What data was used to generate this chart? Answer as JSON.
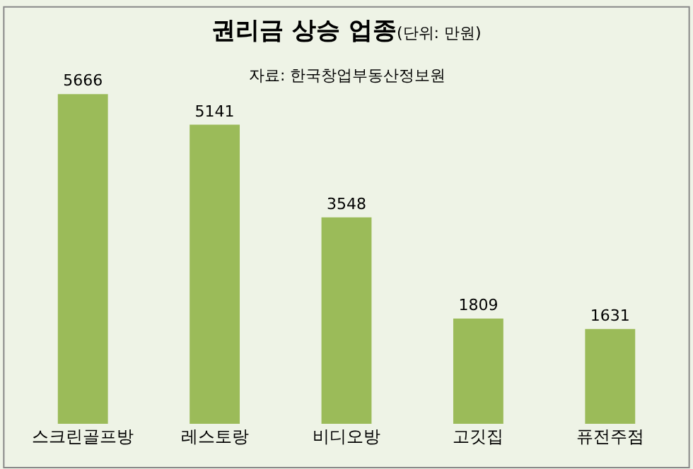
{
  "chart_data": {
    "type": "bar",
    "title": "권리금 상승 업종",
    "subtitle": "(단위: 만원)",
    "annotations": [
      "자료: 한국창업부동산정보원"
    ],
    "categories": [
      "스크린골프방",
      "레스토랑",
      "비디오방",
      "고깃집",
      "퓨전주점"
    ],
    "values": [
      5666,
      5141,
      3548,
      1809,
      1631
    ],
    "color": "#9bbb59",
    "data_labels": true,
    "grid": false,
    "legend": false
  }
}
